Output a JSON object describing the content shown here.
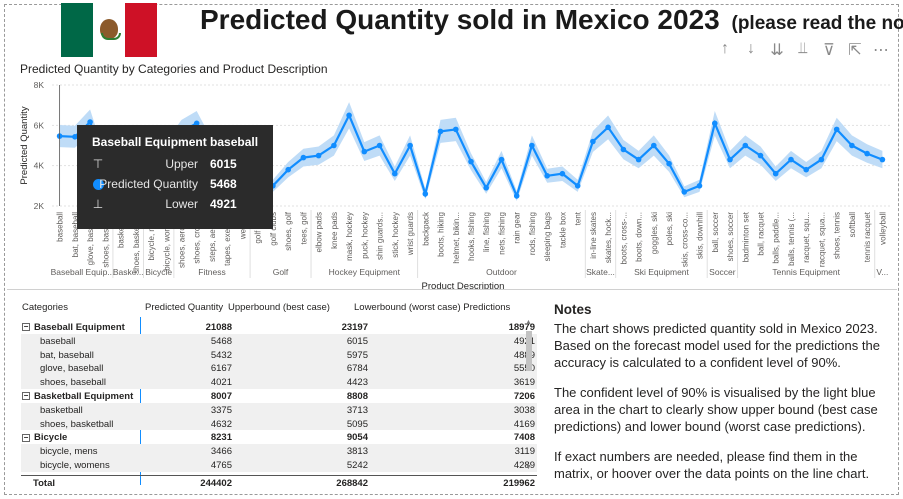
{
  "header": {
    "title": "Predicted Quantity sold in Mexico 2023",
    "title_note": "(please read the notes)"
  },
  "toolbar": {
    "icons": [
      "arrow-up-icon",
      "arrow-down-icon",
      "double-arrow-down-icon",
      "expand-down-icon",
      "filter-icon",
      "focus-mode-icon",
      "more-options-icon"
    ],
    "glyphs": [
      "↑",
      "↓",
      "⇊",
      "⫫",
      "⊽",
      "⇱",
      "⋯"
    ]
  },
  "chart_data": {
    "type": "line",
    "title": "Predicted Quantity by Categories and Product Description",
    "xlabel": "Product Description",
    "ylabel": "Predicted Quantity",
    "yticks": [
      "2K",
      "4K",
      "6K",
      "8K"
    ],
    "ylim": [
      2000,
      8000
    ],
    "band_color": "#bfdcf7",
    "line_color": "#118dff",
    "x": [
      "baseball",
      "bat, baseball",
      "glove, baseball",
      "shoes, baseball",
      "basketball",
      "shoes, basketball",
      "bicycle, mens",
      "bicycle, womens",
      "shoes, aerobics",
      "shoes, cross...",
      "steps, aerobic",
      "tapes, exercise",
      "weights",
      "golf balls",
      "golf clubs",
      "shoes, golf",
      "tees, golf",
      "elbow pads",
      "knee pads",
      "mask, hockey",
      "puck, hockey",
      "shin guards...",
      "stick, hockey",
      "wrist guards",
      "backpack",
      "boots, hiking",
      "helmet, bikin...",
      "hooks, fishing",
      "line, fishing",
      "nets, fishing",
      "rain gear",
      "rods, fishing",
      "sleeping bags",
      "tackle box",
      "tent",
      "in-line skates",
      "skates, hock...",
      "boots, cross-...",
      "boots, down...",
      "goggles, ski",
      "poles, ski",
      "skis, cross-co...",
      "skis, downhill",
      "ball, soccer",
      "shoes, soccer",
      "badminton set",
      "ball, racquet",
      "balls, paddle...",
      "balls, tennis (...",
      "racquet, squ...",
      "racquet, squa...",
      "shoes, tennis",
      "softball",
      "tennis racquet",
      "volleyball"
    ],
    "series": [
      {
        "name": "Predicted Quantity",
        "values": [
          5468,
          5432,
          6167,
          4021,
          3375,
          4632,
          3466,
          4765,
          5700,
          6100,
          4800,
          5200,
          4500,
          3200,
          3000,
          3800,
          4400,
          4500,
          5000,
          6500,
          4700,
          5000,
          3600,
          5000,
          2600,
          5700,
          5800,
          4200,
          2900,
          4300,
          2500,
          5000,
          3500,
          3600,
          3000,
          5200,
          5900,
          4800,
          4300,
          5000,
          4100,
          2700,
          3000,
          6100,
          4300,
          5000,
          4500,
          3600,
          4300,
          3800,
          4300,
          5800,
          5000,
          4600,
          4300
        ]
      },
      {
        "name": "Upper",
        "values": [
          6015,
          5975,
          6784,
          4423,
          3713,
          5095,
          3813,
          5242,
          6270,
          6710,
          5280,
          5720,
          4950,
          3520,
          3300,
          4180,
          4840,
          4950,
          5500,
          7150,
          5170,
          5500,
          3960,
          5500,
          2860,
          6270,
          6380,
          4620,
          3190,
          4730,
          2750,
          5500,
          3850,
          3960,
          3300,
          5720,
          6490,
          5280,
          4730,
          5500,
          4510,
          2970,
          3300,
          6710,
          4730,
          5500,
          4950,
          3960,
          4730,
          4180,
          4730,
          6380,
          5500,
          5060,
          4730
        ]
      },
      {
        "name": "Lower",
        "values": [
          4921,
          4889,
          5550,
          3619,
          3038,
          4169,
          3119,
          4289,
          5130,
          5490,
          4320,
          4680,
          4050,
          2880,
          2700,
          3420,
          3960,
          4050,
          4500,
          5850,
          4230,
          4500,
          3240,
          4500,
          2340,
          5130,
          5220,
          3780,
          2610,
          3870,
          2250,
          4500,
          3150,
          3240,
          2700,
          4680,
          5310,
          4320,
          3870,
          4500,
          3690,
          2430,
          2700,
          5490,
          3870,
          4500,
          4050,
          3240,
          3870,
          3420,
          3870,
          5220,
          4500,
          4140,
          3870
        ]
      }
    ],
    "groups": [
      {
        "label": "Baseball Equip...",
        "count": 4
      },
      {
        "label": "Baske...",
        "count": 2
      },
      {
        "label": "Bicycle",
        "count": 2
      },
      {
        "label": "Fitness",
        "count": 5
      },
      {
        "label": "Golf",
        "count": 4
      },
      {
        "label": "Hockey Equipment",
        "count": 7
      },
      {
        "label": "Outdoor",
        "count": 11
      },
      {
        "label": "Skate...",
        "count": 2
      },
      {
        "label": "Ski Equipment",
        "count": 6
      },
      {
        "label": "Soccer",
        "count": 2
      },
      {
        "label": "Tennis Equipment",
        "count": 9
      },
      {
        "label": "V...",
        "count": 1
      }
    ]
  },
  "tooltip": {
    "title": "Baseball Equipment baseball",
    "rows": [
      {
        "icon": "upper-bound-icon",
        "glyph": "⊤",
        "label": "Upper",
        "value": "6015"
      },
      {
        "icon": "series-dot-icon",
        "glyph": "",
        "label": "Predicted Quantity",
        "value": "5468"
      },
      {
        "icon": "lower-bound-icon",
        "glyph": "⊥",
        "label": "Lower",
        "value": "4921"
      }
    ]
  },
  "matrix": {
    "headers": [
      "Categories",
      "Predicted Quantity",
      "Upperbound (best case)",
      "Lowerbound (worst case) Predictions"
    ],
    "rows": [
      {
        "type": "group",
        "label": "Baseball Equipment",
        "pq": "21088",
        "up": "23197",
        "lo": "18979"
      },
      {
        "type": "item",
        "label": "baseball",
        "pq": "5468",
        "up": "6015",
        "lo": "4921"
      },
      {
        "type": "item",
        "label": "bat, baseball",
        "pq": "5432",
        "up": "5975",
        "lo": "4889"
      },
      {
        "type": "item",
        "label": "glove, baseball",
        "pq": "6167",
        "up": "6784",
        "lo": "5550"
      },
      {
        "type": "item",
        "label": "shoes, baseball",
        "pq": "4021",
        "up": "4423",
        "lo": "3619"
      },
      {
        "type": "group",
        "label": "Basketball Equipment",
        "pq": "8007",
        "up": "8808",
        "lo": "7206"
      },
      {
        "type": "item",
        "label": "basketball",
        "pq": "3375",
        "up": "3713",
        "lo": "3038"
      },
      {
        "type": "item",
        "label": "shoes, basketball",
        "pq": "4632",
        "up": "5095",
        "lo": "4169"
      },
      {
        "type": "group",
        "label": "Bicycle",
        "pq": "8231",
        "up": "9054",
        "lo": "7408"
      },
      {
        "type": "item",
        "label": "bicycle, mens",
        "pq": "3466",
        "up": "3813",
        "lo": "3119"
      },
      {
        "type": "item",
        "label": "bicycle, womens",
        "pq": "4765",
        "up": "5242",
        "lo": "4289"
      }
    ],
    "total": {
      "label": "Total",
      "pq": "244402",
      "up": "268842",
      "lo": "219962"
    }
  },
  "notes": {
    "title": "Notes",
    "paragraphs": [
      "The chart shows predicted quantity sold in Mexico 2023. Based on the forecast model used for the predictions the accuracy is calculated to a confident level of 90%.",
      "The confident level of 90% is visualised by the light blue area in the chart to clearly show upper bound (best case predictions) and lower bound (worst case predictions).",
      "If exact numbers are needed, please find them in the matrix, or hoover over the data points on the line chart."
    ]
  }
}
